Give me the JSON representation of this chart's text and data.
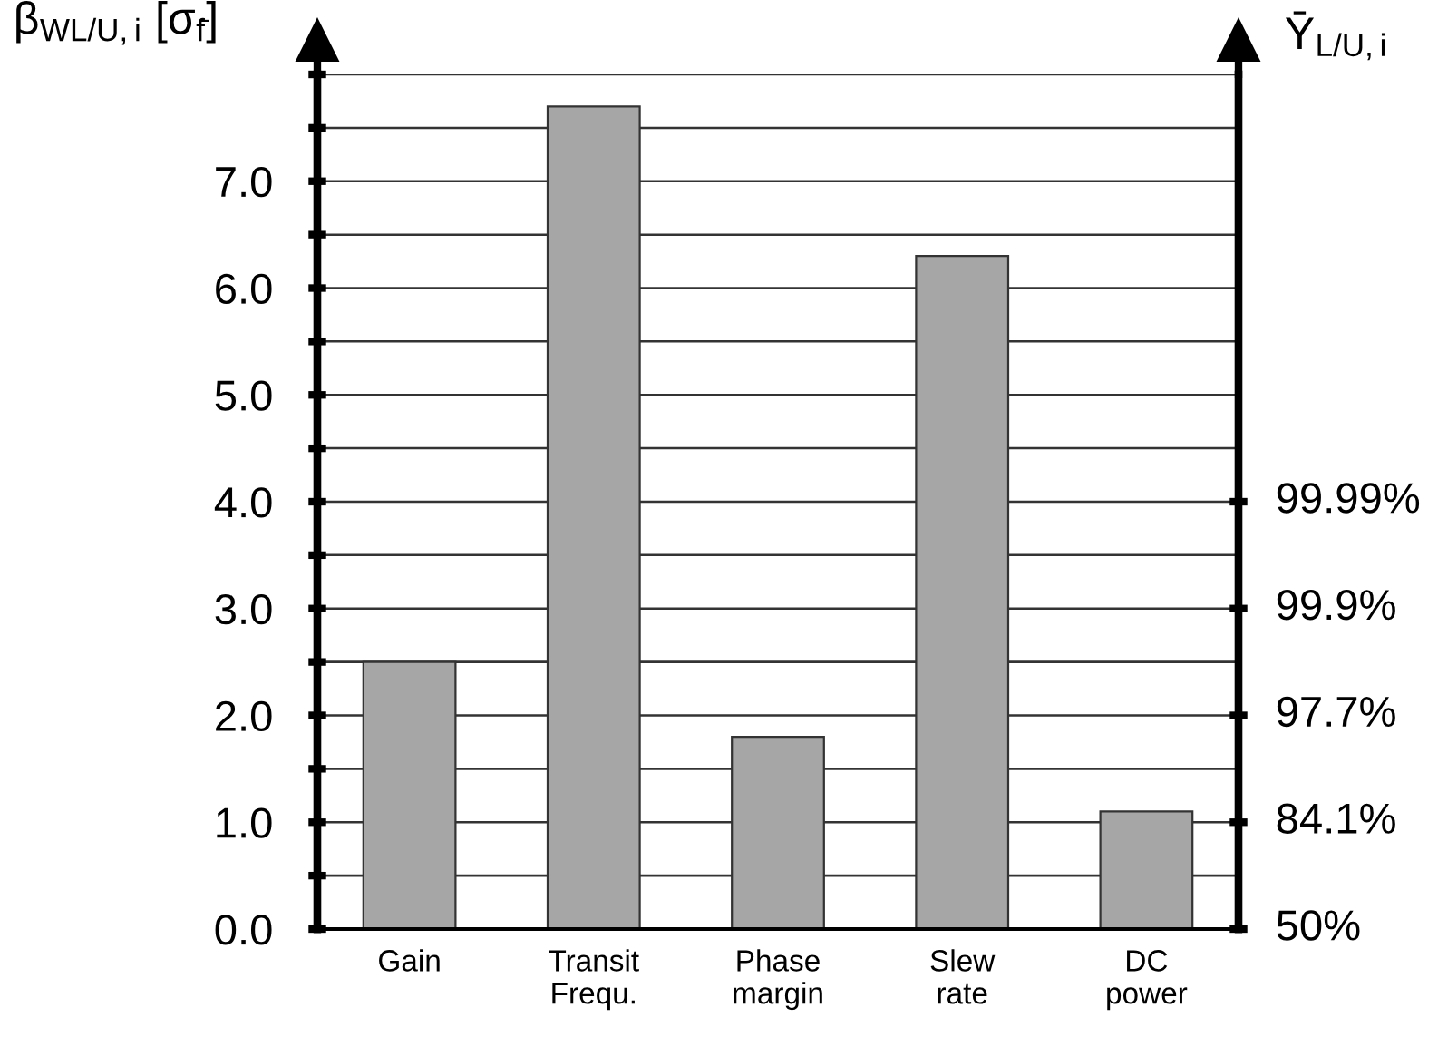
{
  "chart_data": {
    "type": "bar",
    "categories": [
      "Gain",
      "Transit\nFrequ.",
      "Phase\nmargin",
      "Slew\nrate",
      "DC\npower"
    ],
    "values": [
      2.5,
      7.7,
      1.8,
      6.3,
      1.1
    ],
    "color": "#a6a6a6",
    "ylabel": "β$_{WL/U,i}$ [σ$_{f̄}$]",
    "y2label": "Ȳ$_{L/U,i}$",
    "ylim": [
      0,
      8.0
    ],
    "yticks": [
      {
        "value": 0,
        "label": "0.0"
      },
      {
        "value": 0.5,
        "label": null
      },
      {
        "value": 1,
        "label": "1.0"
      },
      {
        "value": 1.5,
        "label": null
      },
      {
        "value": 2,
        "label": "2.0"
      },
      {
        "value": 2.5,
        "label": null
      },
      {
        "value": 3,
        "label": "3.0"
      },
      {
        "value": 3.5,
        "label": null
      },
      {
        "value": 4,
        "label": "4.0"
      },
      {
        "value": 4.5,
        "label": null
      },
      {
        "value": 5,
        "label": "5.0"
      },
      {
        "value": 5.5,
        "label": null
      },
      {
        "value": 6,
        "label": "6.0"
      },
      {
        "value": 6.5,
        "label": null
      },
      {
        "value": 7,
        "label": "7.0"
      },
      {
        "value": 7.5,
        "label": null
      },
      {
        "value": 8,
        "label": null
      }
    ],
    "annotations": [
      "99.99%",
      "99.9%",
      "97.7%",
      "84.1%",
      "50%"
    ],
    "grid": "y"
  }
}
